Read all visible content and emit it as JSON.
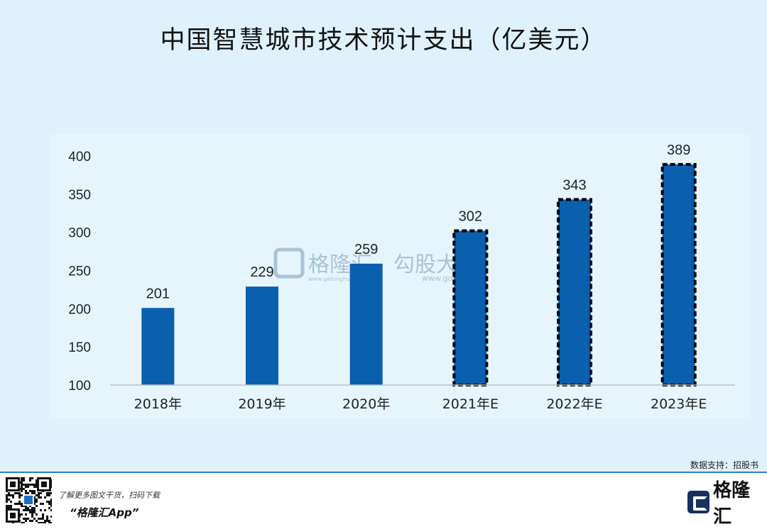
{
  "title": "中国智慧城市技术预计支出（亿美元）",
  "source": "数据支持：招股书",
  "watermark": {
    "text1": "格隆汇",
    "sub1": "www.gelonghui.com",
    "text2": "勾股大",
    "sub2": "www.gogud"
  },
  "footer": {
    "tagline": "了解更多图文干货，扫码下载",
    "app": "“格隆汇App”",
    "brand": "格隆汇"
  },
  "chart_data": {
    "type": "bar",
    "categories": [
      "2018年",
      "2019年",
      "2020年",
      "2021年E",
      "2022年E",
      "2023年E"
    ],
    "values": [
      201,
      229,
      259,
      302,
      343,
      389
    ],
    "estimated": [
      false,
      false,
      false,
      true,
      true,
      true
    ],
    "title": "中国智慧城市技术预计支出（亿美元）",
    "xlabel": "",
    "ylabel": "",
    "ylim": [
      100,
      400
    ],
    "yticks": [
      100,
      150,
      200,
      250,
      300,
      350,
      400
    ],
    "grid": false,
    "legend": "none",
    "bar_color": "#0a5fae",
    "estimate_border": "dashed black"
  }
}
